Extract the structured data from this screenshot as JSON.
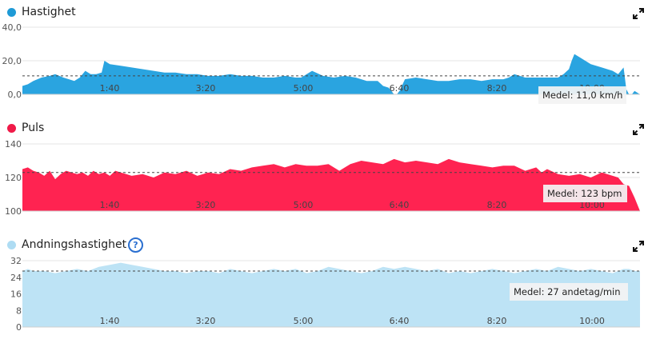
{
  "chart_data": [
    {
      "type": "area",
      "title": "Hastighet",
      "color": "#2aa4e0",
      "dot_color": "#1e9ad6",
      "yticks": [
        "0,0",
        "20,0",
        "40,0"
      ],
      "ylim": [
        0,
        40
      ],
      "xlim": [
        0,
        11.3
      ],
      "xticks": [
        "1:40",
        "3:20",
        "5:00",
        "6:40",
        "8:20",
        "10:00"
      ],
      "average_value": 11,
      "average_label": "Medel: 11,0 km/h",
      "grid": true,
      "x": [
        0.0,
        0.1,
        0.2,
        0.35,
        0.5,
        0.6,
        0.75,
        0.85,
        0.95,
        1.05,
        1.15,
        1.25,
        1.35,
        1.45,
        1.5,
        1.6,
        1.8,
        2.0,
        2.2,
        2.4,
        2.6,
        2.8,
        3.0,
        3.2,
        3.4,
        3.6,
        3.8,
        4.0,
        4.2,
        4.4,
        4.6,
        4.8,
        5.0,
        5.1,
        5.2,
        5.3,
        5.5,
        5.7,
        5.9,
        6.1,
        6.3,
        6.5,
        6.6,
        6.7,
        6.75,
        6.8,
        6.85,
        6.9,
        7.0,
        7.2,
        7.4,
        7.6,
        7.8,
        8.0,
        8.2,
        8.4,
        8.6,
        8.8,
        8.9,
        8.95,
        9.0,
        9.1,
        9.2,
        9.4,
        9.6,
        9.8,
        9.9,
        10.0,
        10.05,
        10.1,
        10.2,
        10.4,
        10.6,
        10.8,
        10.9,
        11.0,
        11.05,
        11.1,
        11.15,
        11.2,
        11.3
      ],
      "y": [
        5,
        6,
        8,
        10,
        11,
        12,
        10,
        9,
        8,
        10,
        14,
        12,
        12,
        13,
        20,
        18,
        17,
        16,
        15,
        14,
        13,
        13,
        12,
        12,
        11,
        11,
        12,
        11,
        11,
        10,
        10,
        11,
        10,
        10,
        12,
        14,
        11,
        10,
        11,
        10,
        8,
        8,
        5,
        4,
        2,
        0,
        0,
        2,
        9,
        10,
        9,
        8,
        8,
        9,
        9,
        8,
        9,
        9,
        10,
        11,
        12,
        11,
        10,
        10,
        10,
        10,
        12,
        15,
        20,
        24,
        22,
        18,
        16,
        14,
        12,
        16,
        3,
        0,
        0,
        2,
        0
      ]
    },
    {
      "type": "area",
      "title": "Puls",
      "color": "#ff2351",
      "dot_color": "#f01a48",
      "yticks": [
        "100",
        "120",
        "140"
      ],
      "ylim": [
        100,
        140
      ],
      "xlim": [
        0,
        11.3
      ],
      "xticks": [
        "1:40",
        "3:20",
        "5:00",
        "6:40",
        "8:20",
        "10:00"
      ],
      "average_value": 123,
      "average_label": "Medel: 123 bpm",
      "grid": true,
      "x": [
        0.0,
        0.1,
        0.2,
        0.3,
        0.4,
        0.5,
        0.6,
        0.7,
        0.8,
        0.9,
        1.0,
        1.1,
        1.2,
        1.3,
        1.4,
        1.5,
        1.6,
        1.7,
        1.8,
        1.9,
        2.0,
        2.2,
        2.4,
        2.6,
        2.8,
        3.0,
        3.2,
        3.4,
        3.6,
        3.8,
        4.0,
        4.2,
        4.4,
        4.6,
        4.8,
        5.0,
        5.2,
        5.4,
        5.6,
        5.8,
        5.9,
        6.0,
        6.2,
        6.4,
        6.6,
        6.8,
        7.0,
        7.2,
        7.4,
        7.6,
        7.8,
        8.0,
        8.2,
        8.4,
        8.6,
        8.8,
        9.0,
        9.2,
        9.4,
        9.5,
        9.6,
        9.8,
        10.0,
        10.2,
        10.4,
        10.6,
        10.8,
        10.9,
        11.0,
        11.1,
        11.2,
        11.3
      ],
      "y": [
        125,
        126,
        124,
        123,
        121,
        124,
        119,
        122,
        124,
        123,
        122,
        123,
        121,
        124,
        122,
        123,
        121,
        124,
        123,
        122,
        121,
        122,
        120,
        123,
        122,
        124,
        121,
        123,
        122,
        125,
        124,
        126,
        127,
        128,
        126,
        128,
        127,
        127,
        128,
        124,
        126,
        128,
        130,
        129,
        128,
        131,
        129,
        130,
        129,
        128,
        131,
        129,
        128,
        127,
        126,
        127,
        127,
        124,
        126,
        123,
        125,
        122,
        121,
        122,
        120,
        123,
        121,
        120,
        116,
        115,
        108,
        100
      ]
    },
    {
      "type": "area",
      "title": "Andningshastighet",
      "color": "#bde3f5",
      "dot_color": "#aedcf3",
      "yticks": [
        "0",
        "8",
        "16",
        "24",
        "32"
      ],
      "ylim": [
        0,
        32
      ],
      "xlim": [
        0,
        11.3
      ],
      "xticks": [
        "1:40",
        "3:20",
        "5:00",
        "6:40",
        "8:20",
        "10:00"
      ],
      "average_value": 27,
      "average_label": "Medel: 27 andetag/min",
      "grid": true,
      "x": [
        0.0,
        0.1,
        0.2,
        0.4,
        0.6,
        0.8,
        1.0,
        1.2,
        1.4,
        1.6,
        1.8,
        2.0,
        2.2,
        2.4,
        2.6,
        2.8,
        3.0,
        3.2,
        3.4,
        3.6,
        3.8,
        4.0,
        4.2,
        4.4,
        4.6,
        4.8,
        5.0,
        5.2,
        5.4,
        5.6,
        5.8,
        6.0,
        6.2,
        6.4,
        6.6,
        6.8,
        7.0,
        7.2,
        7.4,
        7.6,
        7.8,
        8.0,
        8.2,
        8.4,
        8.6,
        8.8,
        9.0,
        9.2,
        9.4,
        9.6,
        9.8,
        10.0,
        10.2,
        10.4,
        10.6,
        10.8,
        11.0,
        11.1,
        11.2,
        11.3
      ],
      "y": [
        27,
        28,
        27,
        27,
        26,
        27,
        28,
        27,
        29,
        30,
        31,
        30,
        29,
        28,
        27,
        27,
        26,
        27,
        27,
        26,
        28,
        27,
        26,
        27,
        28,
        27,
        28,
        26,
        27,
        29,
        28,
        27,
        26,
        27,
        29,
        28,
        29,
        28,
        27,
        28,
        26,
        27,
        26,
        27,
        28,
        27,
        26,
        27,
        28,
        27,
        29,
        28,
        27,
        28,
        27,
        26,
        28,
        28,
        27,
        27
      ]
    }
  ]
}
